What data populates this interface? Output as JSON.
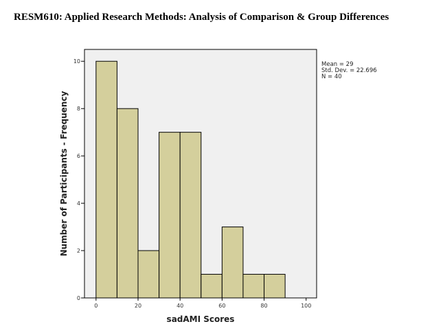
{
  "page": {
    "title": "RESM610: Applied Research Methods: Analysis of Comparison & Group Differences"
  },
  "chart_data": {
    "type": "bar",
    "bins": [
      {
        "from": 0,
        "to": 10,
        "count": 10
      },
      {
        "from": 10,
        "to": 20,
        "count": 8
      },
      {
        "from": 20,
        "to": 30,
        "count": 2
      },
      {
        "from": 30,
        "to": 40,
        "count": 7
      },
      {
        "from": 40,
        "to": 50,
        "count": 7
      },
      {
        "from": 50,
        "to": 60,
        "count": 1
      },
      {
        "from": 60,
        "to": 70,
        "count": 3
      },
      {
        "from": 70,
        "to": 80,
        "count": 1
      },
      {
        "from": 80,
        "to": 90,
        "count": 1
      }
    ],
    "xlabel": "sadAMI Scores",
    "ylabel": "Number of Participants - Frequency",
    "xlim": [
      -5.5,
      105
    ],
    "ylim": [
      0,
      10.5
    ],
    "xticks": [
      "0",
      "20",
      "40",
      "60",
      "80",
      "100"
    ],
    "yticks": [
      "0",
      "2",
      "4",
      "6",
      "8",
      "10"
    ],
    "stats": [
      "Mean = 29",
      "Std. Dev. = 22.696",
      "N = 40"
    ],
    "grid": false,
    "legend": "none",
    "colors": {
      "bar_fill": "#d4cf9c",
      "bar_stroke": "#000000",
      "plot_bg": "#f0f0f0"
    }
  }
}
